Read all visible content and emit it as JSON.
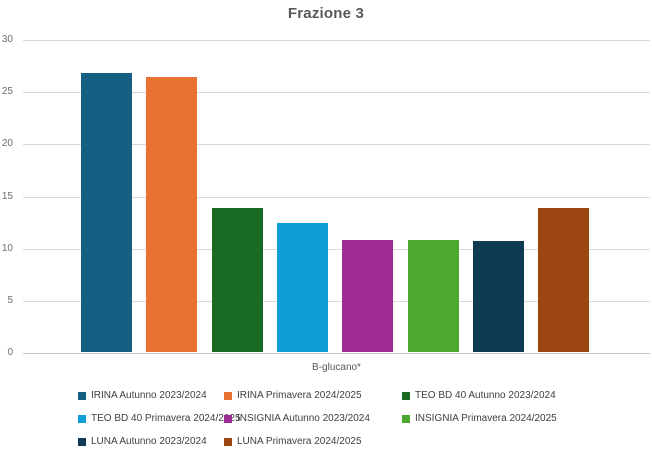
{
  "title": "Frazione 3",
  "chart_data": {
    "type": "bar",
    "title": "Frazione 3",
    "xlabel": "B-glucano*",
    "categories": [
      "B-glucano*"
    ],
    "ylim": [
      0,
      30
    ],
    "ytick_step": 5,
    "yticks": [
      0,
      5,
      10,
      15,
      20,
      25,
      30
    ],
    "grid": true,
    "legend_position": "bottom",
    "series": [
      {
        "name": "IRINA Autunno 2023/2024",
        "values": [
          26.7
        ],
        "color": "#156082"
      },
      {
        "name": "IRINA Primavera 2024/2025",
        "values": [
          26.4
        ],
        "color": "#E97132"
      },
      {
        "name": "TEO BD 40 Autunno 2023/2024",
        "values": [
          13.8
        ],
        "color": "#196B24"
      },
      {
        "name": "TEO BD 40 Primavera 2024/2025",
        "values": [
          12.4
        ],
        "color": "#0F9ED5"
      },
      {
        "name": "INSIGNIA Autunno 2023/2024",
        "values": [
          10.7
        ],
        "color": "#A02B93"
      },
      {
        "name": "INSIGNIA Primavera 2024/2025",
        "values": [
          10.75
        ],
        "color": "#4EA72E"
      },
      {
        "name": "LUNA Autunno 2023/2024",
        "values": [
          10.6
        ],
        "color": "#0E3A53"
      },
      {
        "name": "LUNA Primavera 2024/2025",
        "values": [
          13.8
        ],
        "color": "#9B4511"
      }
    ],
    "colors": {
      "title_text": "#595959",
      "axis_text": "#6e6e6e",
      "legend_text": "#404040",
      "gridline": "#d9d9d9",
      "background": "#ffffff"
    }
  }
}
